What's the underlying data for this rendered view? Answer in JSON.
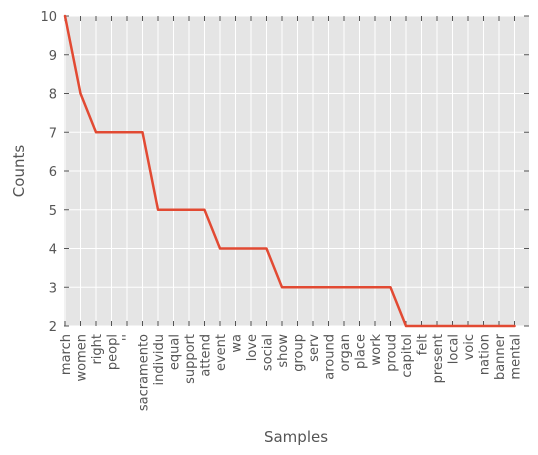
{
  "chart_data": {
    "type": "line",
    "title": "",
    "xlabel": "Samples",
    "ylabel": "Counts",
    "ylim": [
      2,
      10
    ],
    "yticks": [
      2,
      3,
      4,
      5,
      6,
      7,
      8,
      9,
      10
    ],
    "grid": true,
    "legend": "none",
    "colors": {
      "line": "#E24A33",
      "plot_background": "#E5E5E5",
      "grid": "#FFFFFF",
      "text": "#555555"
    },
    "categories": [
      "march",
      "women",
      "right",
      "peopl",
      "''",
      "sacramento",
      "individu",
      "equal",
      "support",
      "attend",
      "event",
      "wa",
      "love",
      "social",
      "show",
      "group",
      "serv",
      "around",
      "organ",
      "place",
      "work",
      "proud",
      "capitol",
      "felt",
      "present",
      "local",
      "voic",
      "nation",
      "banner",
      "mental"
    ],
    "series": [
      {
        "values": [
          10,
          8,
          7,
          7,
          7,
          7,
          5,
          5,
          5,
          5,
          4,
          4,
          4,
          4,
          3,
          3,
          3,
          3,
          3,
          3,
          3,
          3,
          2,
          2,
          2,
          2,
          2,
          2,
          2,
          2
        ]
      }
    ]
  }
}
